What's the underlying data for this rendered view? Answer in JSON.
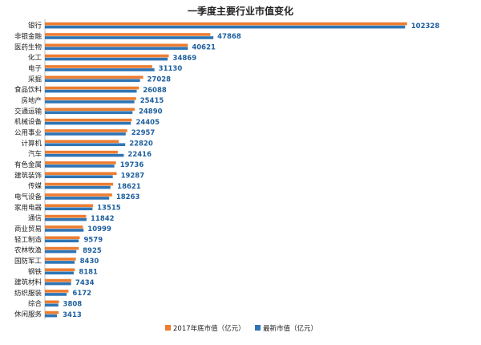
{
  "chart_data": {
    "type": "bar",
    "orientation": "horizontal",
    "title": "一季度主要行业市值变化",
    "categories": [
      "银行",
      "非银金融",
      "医药生物",
      "化工",
      "电子",
      "采掘",
      "食品饮料",
      "房地产",
      "交通运输",
      "机械设备",
      "公用事业",
      "计算机",
      "汽车",
      "有色金属",
      "建筑装饰",
      "传媒",
      "电气设备",
      "家用电器",
      "通信",
      "商业贸易",
      "轻工制造",
      "农林牧渔",
      "国防军工",
      "钢铁",
      "建筑材料",
      "纺织服装",
      "综合",
      "休闲服务"
    ],
    "series": [
      {
        "name": "2017年底市值（亿元）",
        "color": "#ed7d31",
        "values": [
          102900,
          47000,
          40600,
          35200,
          30500,
          27900,
          26700,
          25900,
          25500,
          24700,
          23400,
          21000,
          20700,
          20200,
          20400,
          19400,
          19100,
          13700,
          11700,
          10800,
          9900,
          9600,
          8800,
          8500,
          7500,
          6700,
          4000,
          3900
        ]
      },
      {
        "name": "最新市值（亿元）",
        "color": "#2e75b6",
        "values": [
          102328,
          47868,
          40621,
          34869,
          31130,
          27028,
          26088,
          25415,
          24890,
          24405,
          22957,
          22820,
          22416,
          19736,
          19287,
          18621,
          18263,
          13515,
          11842,
          10999,
          9579,
          8925,
          8430,
          8181,
          7434,
          6172,
          3808,
          3413
        ]
      }
    ],
    "data_labels": [
      "102328",
      "47868",
      "40621",
      "34869",
      "31130",
      "27028",
      "26088",
      "25415",
      "24890",
      "24405",
      "22957",
      "22820",
      "22416",
      "19736",
      "19287",
      "18621",
      "18263",
      "13515",
      "11842",
      "10999",
      "9579",
      "8925",
      "8430",
      "8181",
      "7434",
      "6172",
      "3808",
      "3413"
    ],
    "xlim": [
      0,
      105000
    ],
    "legend_position": "bottom",
    "grid": false
  }
}
